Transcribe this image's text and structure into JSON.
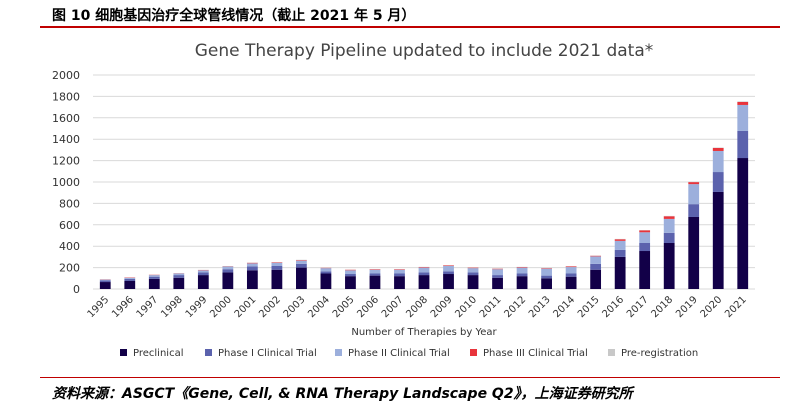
{
  "figure_title": "图 10 细胞基因治疗全球管线情况（截止 2021 年 5 月）",
  "source": "资料来源：ASGCT《Gene, Cell, & RNA Therapy Landscape  Q2》，上海证券研究所",
  "chart_data": {
    "type": "bar",
    "stacked": true,
    "title": "Gene Therapy Pipeline updated to include 2021 data*",
    "xlabel": "Number of Therapies by Year",
    "ylabel": "",
    "ylim": [
      0,
      2000
    ],
    "yticks": [
      0,
      200,
      400,
      600,
      800,
      1000,
      1200,
      1400,
      1600,
      1800,
      2000
    ],
    "grid": true,
    "legend_position": "bottom",
    "categories": [
      "1995",
      "1996",
      "1997",
      "1998",
      "1999",
      "2000",
      "2001",
      "2002",
      "2003",
      "2004",
      "2005",
      "2006",
      "2007",
      "2008",
      "2009",
      "2010",
      "2011",
      "2012",
      "2013",
      "2014",
      "2015",
      "2016",
      "2017",
      "2018",
      "2019",
      "2020",
      "2021"
    ],
    "series": [
      {
        "name": "Preclinical",
        "color": "#120048",
        "values": [
          65,
          75,
          95,
          105,
          130,
          155,
          175,
          180,
          200,
          145,
          120,
          125,
          120,
          130,
          140,
          130,
          105,
          120,
          100,
          115,
          180,
          300,
          355,
          430,
          673,
          907,
          1224
        ]
      },
      {
        "name": "Phase I Clinical Trial",
        "color": "#5b62ad",
        "values": [
          15,
          20,
          20,
          25,
          25,
          30,
          35,
          35,
          35,
          20,
          20,
          20,
          25,
          25,
          25,
          25,
          25,
          25,
          25,
          30,
          55,
          65,
          75,
          95,
          120,
          186,
          253
        ]
      },
      {
        "name": "Phase II Clinical Trial",
        "color": "#9cafdc",
        "values": [
          8,
          10,
          15,
          15,
          20,
          25,
          30,
          30,
          30,
          30,
          35,
          35,
          35,
          45,
          50,
          40,
          55,
          55,
          65,
          60,
          70,
          85,
          100,
          130,
          187,
          197,
          243
        ]
      },
      {
        "name": "Phase III Clinical Trial",
        "color": "#e8343c",
        "values": [
          2,
          3,
          3,
          2,
          3,
          3,
          5,
          5,
          5,
          3,
          5,
          5,
          5,
          5,
          5,
          5,
          5,
          5,
          5,
          6,
          6,
          15,
          18,
          25,
          19,
          28,
          28
        ]
      },
      {
        "name": "Pre-registration",
        "color": "#c8c8c8",
        "values": [
          1,
          1,
          1,
          1,
          1,
          2,
          2,
          2,
          3,
          1,
          1,
          1,
          1,
          2,
          2,
          2,
          2,
          2,
          2,
          2,
          2,
          3,
          3,
          3,
          3,
          4,
          5
        ]
      }
    ]
  }
}
